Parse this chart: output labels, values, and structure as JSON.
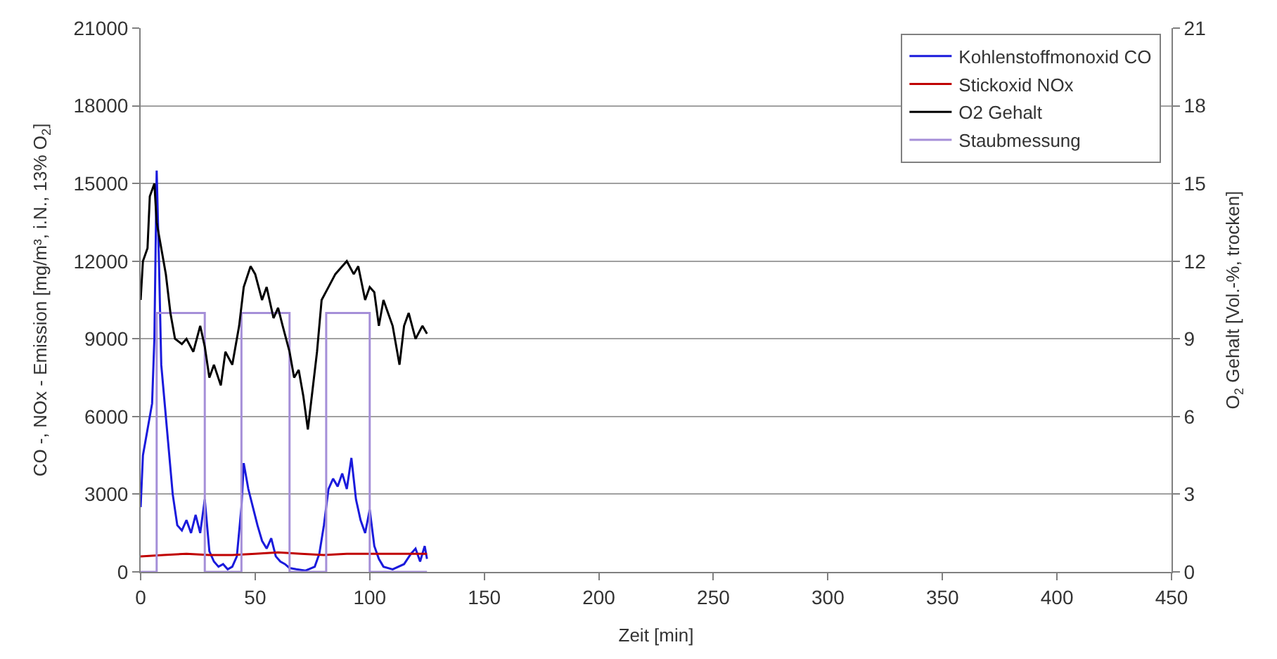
{
  "chart_data": {
    "type": "line",
    "xlabel": "Zeit [min]",
    "ylabel": "CO -, NOx - Emission [mg/m³, i.N., 13% O$_{2}$]",
    "y2label": "O$_{2}$ Gehalt [Vol.-%, trocken]",
    "xlim": [
      0,
      450
    ],
    "xticks": [
      0,
      50,
      100,
      150,
      200,
      250,
      300,
      350,
      400,
      450
    ],
    "ylim": [
      0,
      21000
    ],
    "yticks": [
      0,
      3000,
      6000,
      9000,
      12000,
      15000,
      18000,
      21000
    ],
    "y2lim": [
      0,
      21
    ],
    "y2ticks": [
      0,
      3,
      6,
      9,
      12,
      15,
      18,
      21
    ],
    "grid": "y",
    "legend": "top right",
    "marker": "none",
    "line_style": "solid",
    "series": [
      {
        "name": "Kohlenstoffmonoxid CO",
        "color": "#1a1adc",
        "x": [
          0,
          1,
          3,
          5,
          6,
          7,
          8,
          9,
          10,
          12,
          14,
          16,
          18,
          20,
          22,
          24,
          26,
          28,
          30,
          32,
          34,
          36,
          38,
          40,
          42,
          44,
          45,
          47,
          49,
          51,
          53,
          55,
          57,
          59,
          61,
          63,
          65,
          68,
          72,
          76,
          78,
          80,
          82,
          84,
          86,
          88,
          90,
          92,
          94,
          96,
          98,
          100,
          102,
          104,
          106,
          110,
          115,
          118,
          120,
          122,
          124,
          125
        ],
        "values": [
          2500,
          4500,
          5500,
          6500,
          9000,
          15500,
          12000,
          8000,
          7000,
          5000,
          3000,
          1800,
          1600,
          2000,
          1500,
          2200,
          1500,
          2800,
          800,
          400,
          200,
          300,
          100,
          200,
          600,
          2500,
          4200,
          3200,
          2500,
          1800,
          1200,
          900,
          1300,
          600,
          400,
          300,
          150,
          100,
          50,
          200,
          700,
          1800,
          3200,
          3600,
          3300,
          3800,
          3200,
          4400,
          2800,
          2000,
          1500,
          2400,
          1000,
          500,
          200,
          100,
          300,
          700,
          900,
          400,
          1000,
          500
        ]
      },
      {
        "name": "Stickoxid NOx",
        "color": "#c00000",
        "x": [
          0,
          10,
          20,
          30,
          40,
          50,
          60,
          70,
          80,
          90,
          100,
          110,
          125
        ],
        "values": [
          600,
          650,
          700,
          650,
          650,
          700,
          750,
          700,
          650,
          700,
          700,
          700,
          700
        ]
      },
      {
        "name": "O2 Gehalt",
        "color": "#000000",
        "axis": "y2",
        "x": [
          0,
          1,
          3,
          4,
          6,
          7,
          9,
          11,
          13,
          15,
          18,
          20,
          23,
          26,
          28,
          30,
          32,
          35,
          37,
          40,
          43,
          45,
          48,
          50,
          53,
          55,
          58,
          60,
          62,
          65,
          67,
          69,
          71,
          73,
          75,
          77,
          79,
          82,
          85,
          88,
          90,
          93,
          95,
          98,
          100,
          102,
          104,
          106,
          108,
          110,
          113,
          115,
          117,
          120,
          123,
          125
        ],
        "values": [
          10.5,
          12,
          12.5,
          14.5,
          15,
          13.5,
          12.5,
          11.5,
          10,
          9,
          8.8,
          9,
          8.5,
          9.5,
          8.7,
          7.5,
          8,
          7.2,
          8.5,
          8,
          9.5,
          11,
          11.8,
          11.5,
          10.5,
          11,
          9.8,
          10.2,
          9.5,
          8.5,
          7.5,
          7.8,
          6.8,
          5.5,
          7,
          8.5,
          10.5,
          11,
          11.5,
          11.8,
          12,
          11.5,
          11.8,
          10.5,
          11,
          10.8,
          9.5,
          10.5,
          10,
          9.5,
          8,
          9.5,
          10,
          9,
          9.5,
          9.2
        ]
      },
      {
        "name": "Staubmessung",
        "color": "#a58fd8",
        "x": [
          0,
          7,
          7,
          28,
          28,
          44,
          44,
          65,
          65,
          81,
          81,
          100,
          100,
          125
        ],
        "values": [
          0,
          0,
          10000,
          10000,
          0,
          0,
          10000,
          10000,
          0,
          0,
          10000,
          10000,
          0,
          0
        ]
      }
    ]
  }
}
